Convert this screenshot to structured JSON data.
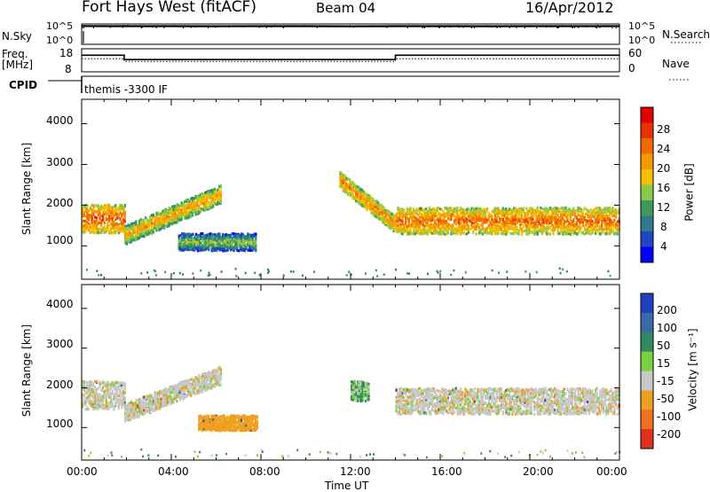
{
  "header": {
    "station": "Fort Hays West (fitACF)",
    "beam": "Beam 04",
    "date": "16/Apr/2012"
  },
  "top_panels": {
    "nsky_label": "N.Sky",
    "nsky_ticks": [
      "10^5",
      "10^0"
    ],
    "nsearch_label": "N.Search",
    "nsearch_ticks": [
      "10^5",
      "10^0"
    ],
    "freq_label": "Freq.",
    "freq_unit": "[MHz]",
    "freq_ticks": [
      "18",
      "8"
    ],
    "nave_label": "Nave",
    "nave_ticks": [
      "60",
      "0"
    ],
    "cpid_label": "CPID",
    "cpid_value": "themis -3300 IF"
  },
  "power_panel": {
    "ylabel": "Slant Range [km]",
    "yticks": [
      "4000",
      "3000",
      "2000",
      "1000"
    ],
    "colorbar_label": "Power [dB]",
    "colorbar_ticks": [
      "28",
      "24",
      "20",
      "16",
      "12",
      "8",
      "4"
    ],
    "colors": [
      "#0000ff",
      "#1f44c4",
      "#2f7a8c",
      "#3c9a60",
      "#8cc84a",
      "#f5c000",
      "#f59a00",
      "#f06a00",
      "#e83000",
      "#e00000"
    ]
  },
  "velocity_panel": {
    "ylabel": "Slant Range [km]",
    "yticks": [
      "4000",
      "3000",
      "2000",
      "1000"
    ],
    "colorbar_label": "Velocity [m s⁻¹]",
    "colorbar_ticks": [
      "200",
      "100",
      "50",
      "15",
      "-15",
      "-50",
      "-100",
      "-200"
    ],
    "colors": [
      "#2040c0",
      "#3a6aa8",
      "#2f8a60",
      "#7ad040",
      "#c8c8c8",
      "#f0a020",
      "#f07020",
      "#e03020"
    ]
  },
  "x_axis": {
    "ticks": [
      "00:00",
      "04:00",
      "08:00",
      "12:00",
      "16:00",
      "20:00",
      "00:00"
    ],
    "label": "Time UT"
  },
  "chart_data": [
    {
      "type": "line",
      "name": "N.Sky / N.Search",
      "x_range_hours": [
        0,
        24
      ],
      "y_scale": "log",
      "ylim": [
        1,
        100000
      ],
      "series": [
        {
          "name": "N.Sky",
          "style": "solid",
          "x": [
            0,
            2,
            4,
            6,
            8,
            10,
            12,
            14,
            16,
            18,
            20,
            22,
            24
          ],
          "y": [
            30000,
            28000,
            29000,
            27000,
            28000,
            29000,
            26000,
            28000,
            29000,
            27000,
            28000,
            29000,
            28000
          ]
        }
      ]
    },
    {
      "type": "line",
      "name": "Freq / Nave",
      "x_range_hours": [
        0,
        24
      ],
      "series": [
        {
          "name": "Freq.",
          "unit": "MHz",
          "ylim": [
            8,
            18
          ],
          "x": [
            0,
            1.9,
            1.9,
            14,
            14,
            24
          ],
          "y": [
            15.2,
            15.2,
            13.3,
            13.3,
            15.2,
            15.2
          ]
        },
        {
          "name": "Nave",
          "style": "dotted",
          "ylim": [
            0,
            60
          ],
          "x": [
            0,
            1.9,
            1.9,
            14,
            14,
            24
          ],
          "y": [
            34,
            34,
            27,
            27,
            34,
            34
          ]
        }
      ]
    },
    {
      "type": "heatmap",
      "name": "Power",
      "x_range_hours": [
        0,
        24
      ],
      "ylim": [
        180,
        4600
      ],
      "zlim": [
        0,
        30
      ],
      "unit": "dB",
      "features": [
        {
          "t_start": 0.0,
          "t_end": 1.9,
          "r_center": 1650,
          "r_width": 700,
          "z": 18
        },
        {
          "t_start": 1.9,
          "t_end": 6.2,
          "r_center_start": 1250,
          "r_center_end": 2250,
          "r_width": 450,
          "z": 14
        },
        {
          "t_start": 4.3,
          "t_end": 7.8,
          "r_center": 1080,
          "r_width": 420,
          "z": 8
        },
        {
          "t_start": 11.5,
          "t_end": 14.0,
          "r_center_start": 2600,
          "r_center_end": 1500,
          "r_width": 400,
          "z": 16
        },
        {
          "t_start": 14.0,
          "t_end": 24.0,
          "r_center": 1600,
          "r_width": 650,
          "z": 17
        }
      ]
    },
    {
      "type": "heatmap",
      "name": "Velocity",
      "x_range_hours": [
        0,
        24
      ],
      "ylim": [
        180,
        4600
      ],
      "zlim": [
        -250,
        250
      ],
      "unit": "m s-1",
      "features": [
        {
          "t_start": 0.0,
          "t_end": 1.9,
          "r_center": 1800,
          "r_width": 700,
          "z": 0
        },
        {
          "t_start": 1.9,
          "t_end": 6.2,
          "r_center_start": 1350,
          "r_center_end": 2300,
          "r_width": 450,
          "z": 0
        },
        {
          "t_start": 5.2,
          "t_end": 7.8,
          "r_center": 1100,
          "r_width": 380,
          "z": -50
        },
        {
          "t_start": 12.0,
          "t_end": 12.8,
          "r_center": 1900,
          "r_width": 500,
          "z": 30
        },
        {
          "t_start": 14.0,
          "t_end": 24.0,
          "r_center": 1650,
          "r_width": 650,
          "z": 0
        }
      ]
    }
  ]
}
